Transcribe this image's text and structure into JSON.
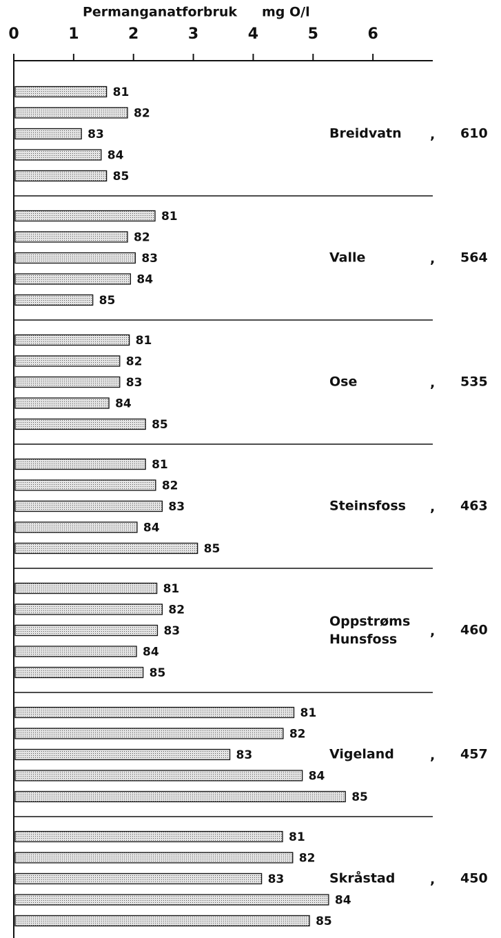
{
  "chart_data": {
    "type": "bar",
    "orientation": "horizontal",
    "xlabel": "Permanganatforbruk",
    "xunit": "mg O/l",
    "xlim": [
      0,
      7
    ],
    "xticks": [
      0,
      1,
      2,
      3,
      4,
      5,
      6
    ],
    "categories": [
      "81",
      "82",
      "83",
      "84",
      "85"
    ],
    "separator": ",",
    "groups": [
      {
        "name": "Breidvatn",
        "code": 610,
        "values": [
          1.55,
          1.9,
          1.13,
          1.46,
          1.55
        ]
      },
      {
        "name": "Valle",
        "code": 564,
        "values": [
          2.36,
          1.9,
          2.03,
          1.95,
          1.32
        ]
      },
      {
        "name": "Ose",
        "code": 535,
        "values": [
          1.93,
          1.77,
          1.77,
          1.59,
          2.2
        ]
      },
      {
        "name": "Steinsfoss",
        "code": 463,
        "values": [
          2.2,
          2.37,
          2.48,
          2.06,
          3.07
        ]
      },
      {
        "name": "Oppstrøms Hunsfoss",
        "code": 460,
        "values": [
          2.39,
          2.48,
          2.4,
          2.05,
          2.16
        ]
      },
      {
        "name": "Vigeland",
        "code": 457,
        "values": [
          4.68,
          4.5,
          3.61,
          4.82,
          5.54
        ]
      },
      {
        "name": "Skråstad",
        "code": 450,
        "values": [
          4.49,
          4.66,
          4.14,
          5.26,
          4.94
        ]
      }
    ]
  }
}
